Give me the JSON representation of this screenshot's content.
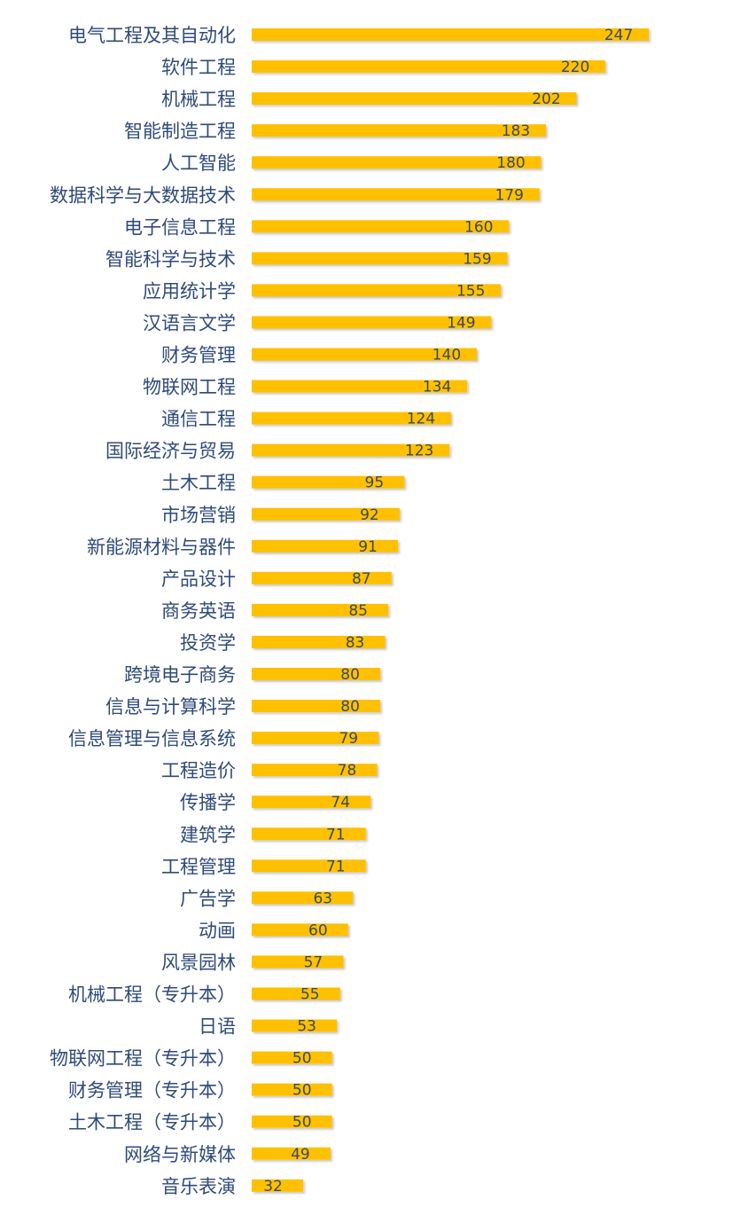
{
  "chart_data": {
    "type": "bar",
    "orientation": "horizontal",
    "categories": [
      "电气工程及其自动化",
      "软件工程",
      "机械工程",
      "智能制造工程",
      "人工智能",
      "数据科学与大数据技术",
      "电子信息工程",
      "智能科学与技术",
      "应用统计学",
      "汉语言文学",
      "财务管理",
      "物联网工程",
      "通信工程",
      "国际经济与贸易",
      "土木工程",
      "市场营销",
      "新能源材料与器件",
      "产品设计",
      "商务英语",
      "投资学",
      "跨境电子商务",
      "信息与计算科学",
      "信息管理与信息系统",
      "工程造价",
      "传播学",
      "建筑学",
      "工程管理",
      "广告学",
      "动画",
      "风景园林",
      "机械工程（专升本）",
      "日语",
      "物联网工程（专升本）",
      "财务管理（专升本）",
      "土木工程（专升本）",
      "网络与新媒体",
      "音乐表演"
    ],
    "values": [
      247,
      220,
      202,
      183,
      180,
      179,
      160,
      159,
      155,
      149,
      140,
      134,
      124,
      123,
      95,
      92,
      91,
      87,
      85,
      83,
      80,
      80,
      79,
      78,
      74,
      71,
      71,
      63,
      60,
      57,
      55,
      53,
      50,
      50,
      50,
      49,
      32
    ],
    "data_labels": true,
    "grid": false,
    "legend": "none",
    "colors": {
      "bar": "#FFC000",
      "category_text": "#2F4A7A",
      "value_text": "#3A4A60"
    }
  }
}
